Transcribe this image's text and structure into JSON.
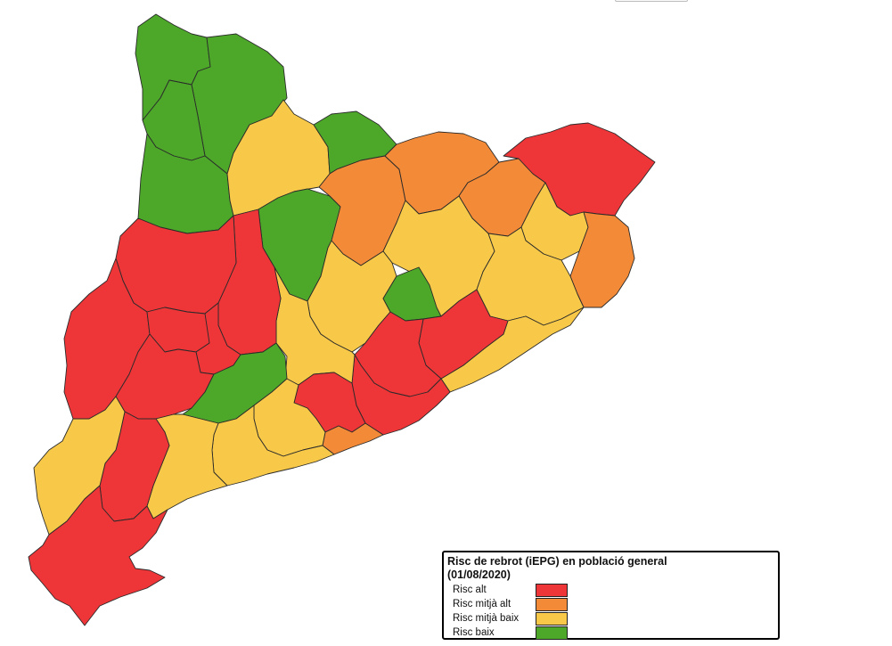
{
  "colors": {
    "alt": "#ee3538",
    "mitja_alt": "#f28a38",
    "mitja_baix": "#f8c948",
    "baix": "#4da82a"
  },
  "legend": {
    "title": "Risc de rebrot (iEPG) en població general (01/08/2020)",
    "items": [
      {
        "label": "Risc alt",
        "color": "#ee3538"
      },
      {
        "label": "Risc mitjà alt",
        "color": "#f28a38"
      },
      {
        "label": "Risc mitjà baix",
        "color": "#f8c948"
      },
      {
        "label": "Risc baix",
        "color": "#4da82a"
      }
    ]
  }
}
